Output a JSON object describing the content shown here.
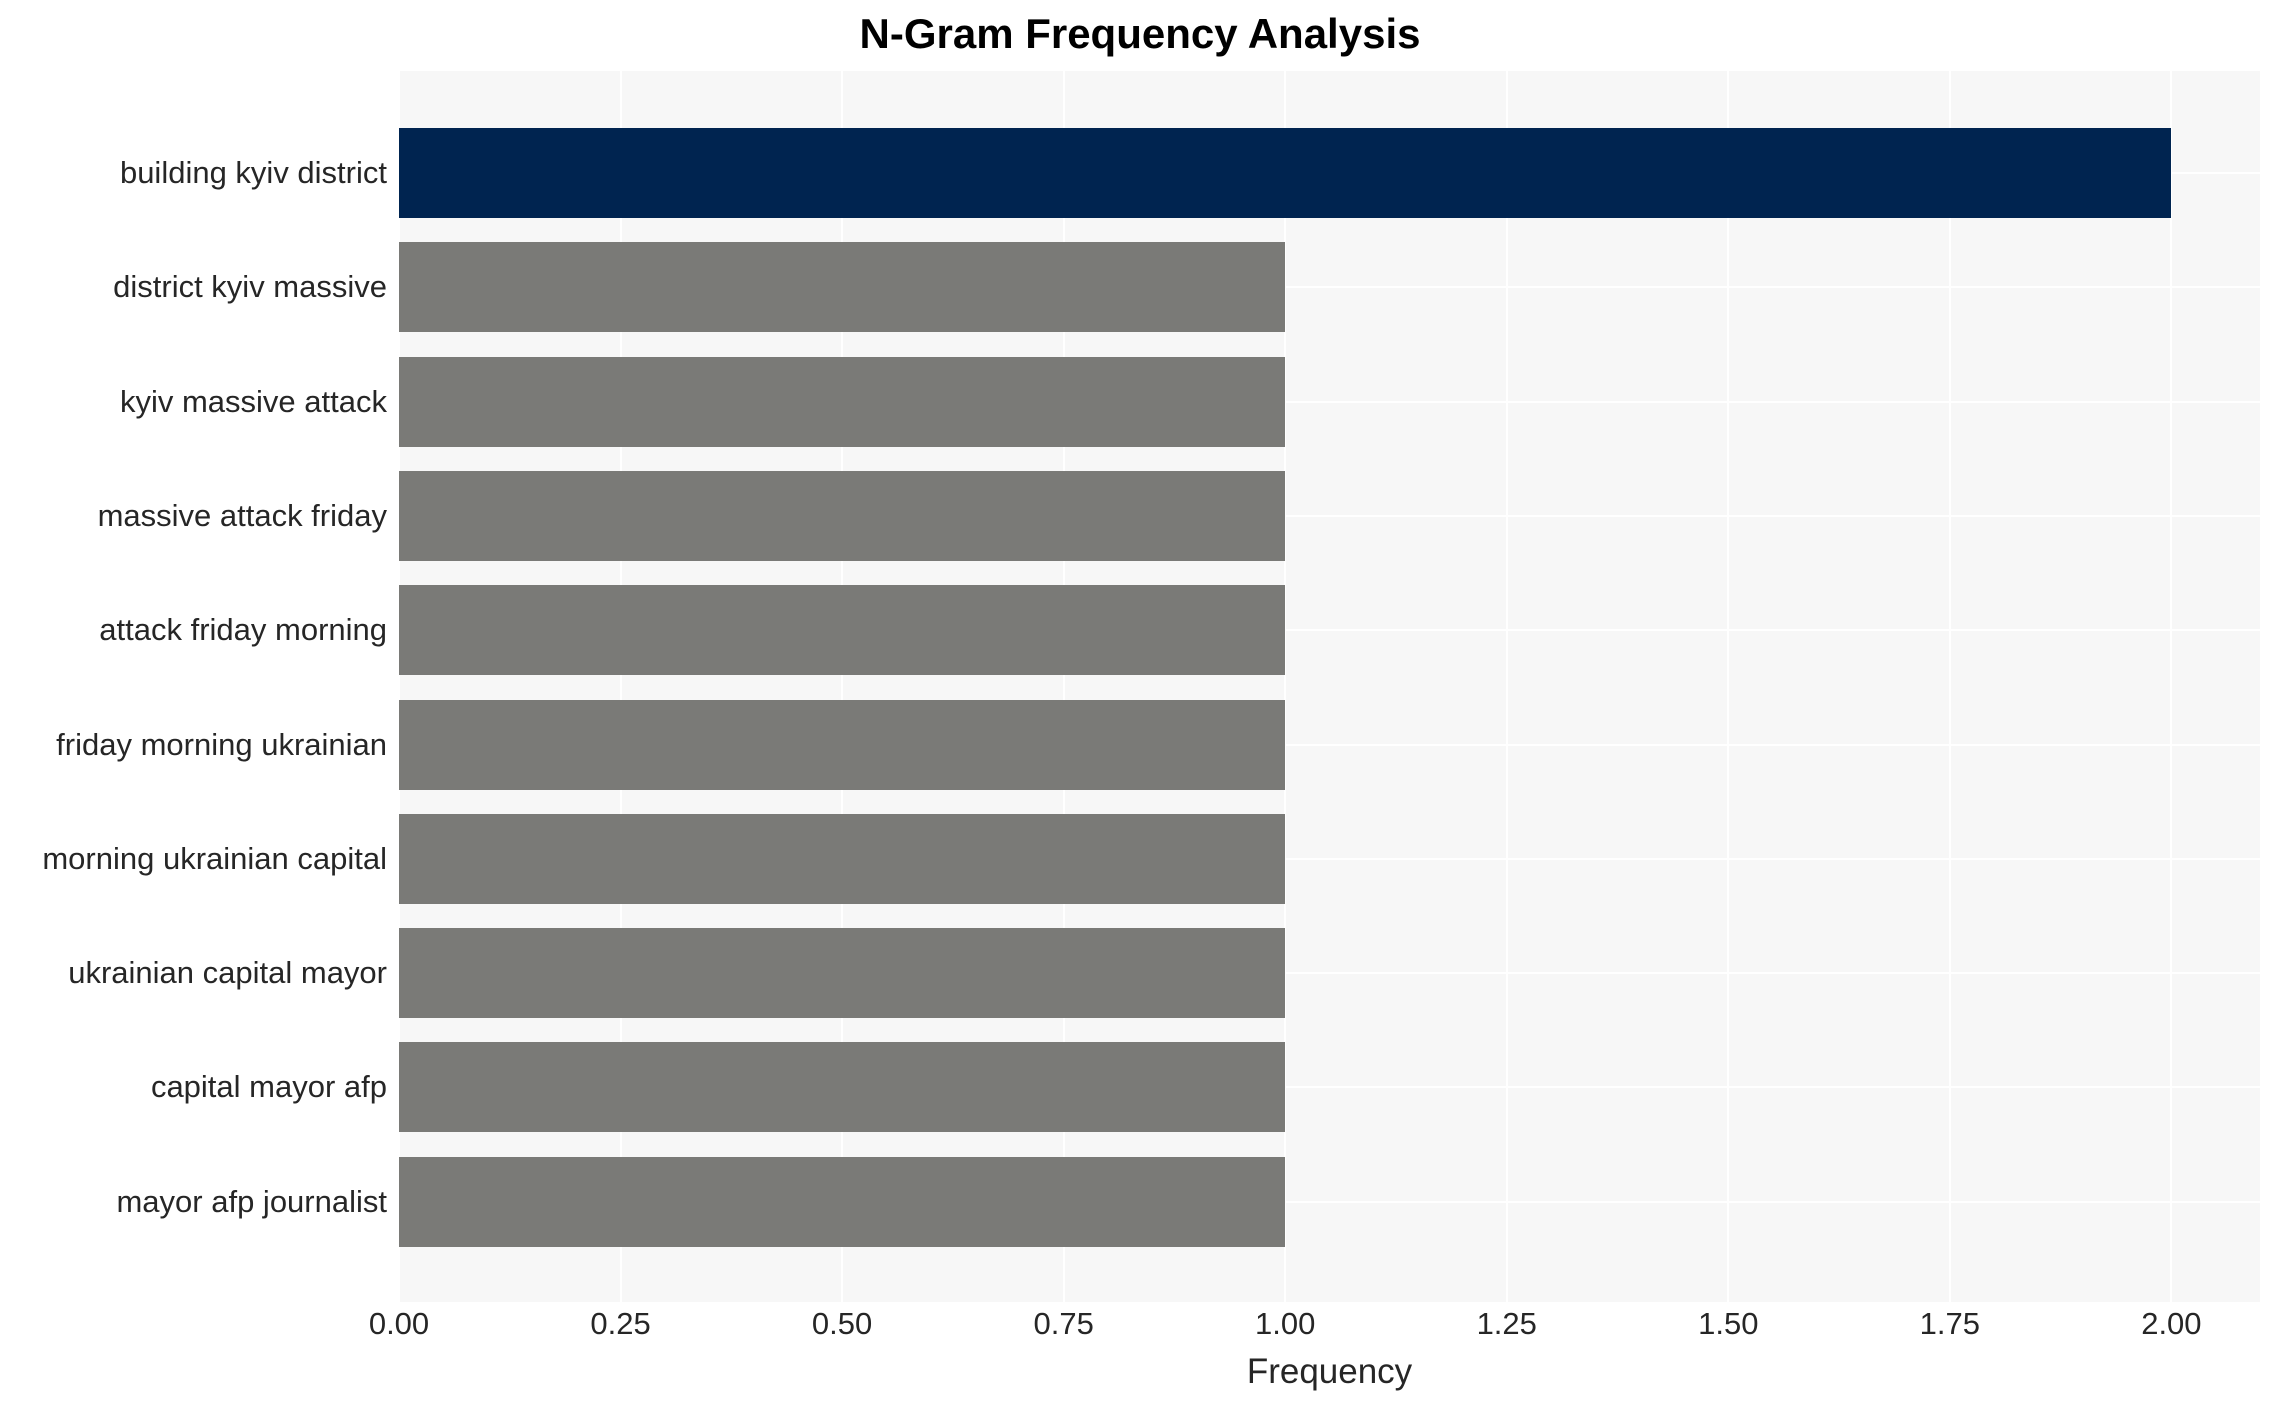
{
  "chart_data": {
    "type": "bar",
    "orientation": "horizontal",
    "title": "N-Gram Frequency Analysis",
    "xlabel": "Frequency",
    "ylabel": "",
    "categories": [
      "building kyiv district",
      "district kyiv massive",
      "kyiv massive attack",
      "massive attack friday",
      "attack friday morning",
      "friday morning ukrainian",
      "morning ukrainian capital",
      "ukrainian capital mayor",
      "capital mayor afp",
      "mayor afp journalist"
    ],
    "values": [
      2.0,
      1.0,
      1.0,
      1.0,
      1.0,
      1.0,
      1.0,
      1.0,
      1.0,
      1.0
    ],
    "bar_colors": [
      "#002450",
      "#7A7A77",
      "#7A7A77",
      "#7A7A77",
      "#7A7A77",
      "#7A7A77",
      "#7A7A77",
      "#7A7A77",
      "#7A7A77",
      "#7A7A77"
    ],
    "xlim": [
      0,
      2.1
    ],
    "xtick_values": [
      0,
      0.25,
      0.5,
      0.75,
      1.0,
      1.25,
      1.5,
      1.75,
      2.0
    ],
    "xtick_labels": [
      "0.00",
      "0.25",
      "0.50",
      "0.75",
      "1.00",
      "1.25",
      "1.50",
      "1.75",
      "2.00"
    ],
    "grid": true,
    "legend_position": "none",
    "colors": {
      "highlight_bar": "#002450",
      "default_bar": "#7A7A77",
      "plot_background": "#F7F7F7",
      "gridline": "#FFFFFF",
      "title_text": "#000000",
      "tick_text": "#262626"
    }
  }
}
